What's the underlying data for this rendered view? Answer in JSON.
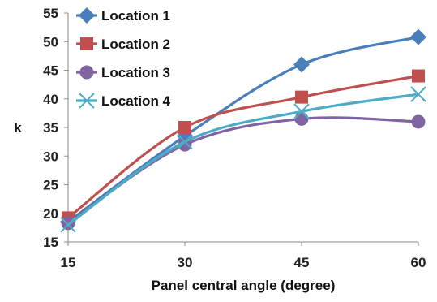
{
  "chart_data": {
    "type": "line",
    "xlabel": "Panel central angle (degree)",
    "ylabel": "k",
    "x": [
      15,
      30,
      45,
      60
    ],
    "xlim": [
      15,
      60
    ],
    "ylim": [
      15,
      55
    ],
    "yticks": [
      15,
      20,
      25,
      30,
      35,
      40,
      45,
      50,
      55
    ],
    "smoothed": true,
    "grid": false,
    "legend_position": "top-left",
    "series": [
      {
        "name": "Location 1",
        "values": [
          18.5,
          33.5,
          46.0,
          50.8
        ],
        "color": "#4a7ebb",
        "marker": "diamond"
      },
      {
        "name": "Location 2",
        "values": [
          19.2,
          35.0,
          40.3,
          44.0
        ],
        "color": "#c0504d",
        "marker": "square"
      },
      {
        "name": "Location 3",
        "values": [
          18.3,
          32.0,
          36.5,
          36.0
        ],
        "color": "#8064a2",
        "marker": "circle"
      },
      {
        "name": "Location 4",
        "values": [
          18.0,
          32.5,
          37.8,
          40.8
        ],
        "color": "#4bacc6",
        "marker": "x"
      }
    ]
  }
}
